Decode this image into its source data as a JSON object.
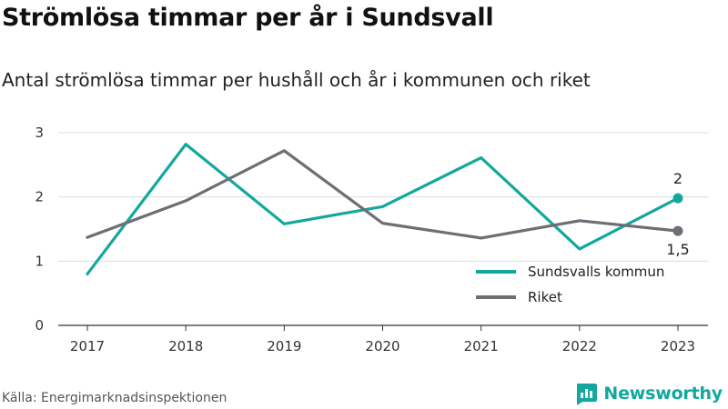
{
  "header": {
    "title": "Strömlösa timmar per år i Sundsvall",
    "subtitle": "Antal strömlösa timmar per hushåll och år i kommunen och riket"
  },
  "footer": {
    "source": "Källa: Energimarknadsinspektionen",
    "brand": "Newsworthy",
    "brand_icon": "newsworthy-logo-icon",
    "brand_color": "#13a89e"
  },
  "chart_data": {
    "type": "line",
    "x": [
      "2017",
      "2018",
      "2019",
      "2020",
      "2021",
      "2022",
      "2023"
    ],
    "ylim": [
      0,
      3
    ],
    "yticks": [
      "0",
      "1",
      "2",
      "3"
    ],
    "grid": true,
    "legend_position": "bottom-right",
    "series": [
      {
        "name": "Sundsvalls kommun",
        "color": "#13a89e",
        "values": [
          0.8,
          2.82,
          1.58,
          1.85,
          2.61,
          1.19,
          1.98
        ],
        "end_label": "2"
      },
      {
        "name": "Riket",
        "color": "#6e6e75",
        "values": [
          1.37,
          1.94,
          2.72,
          1.59,
          1.36,
          1.63,
          1.47
        ],
        "end_label": "1,5"
      }
    ]
  }
}
